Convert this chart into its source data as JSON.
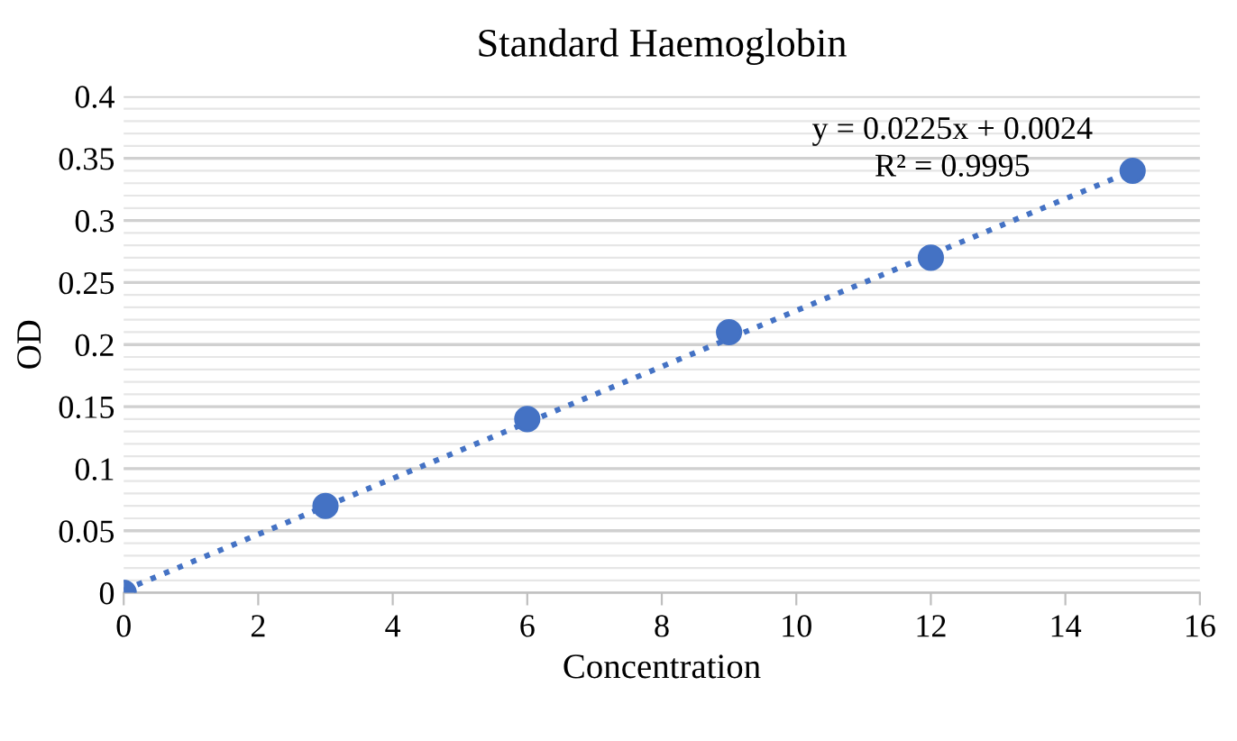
{
  "chart_data": {
    "type": "scatter",
    "title": "Standard Haemoglobin",
    "xlabel": "Concentration",
    "ylabel": "OD",
    "x": [
      0,
      3,
      6,
      9,
      12,
      15
    ],
    "series": [
      {
        "color": "#4472c4",
        "values": [
          0,
          0.07,
          0.14,
          0.21,
          0.27,
          0.34
        ],
        "marker": "circle"
      },
      {
        "type": "line",
        "color": "#4472c4",
        "x": [
          0,
          15
        ],
        "values": [
          0.002,
          0.34
        ],
        "line_style": "dotted",
        "marker": "none"
      }
    ],
    "annotations": [
      "y = 0.0225x + 0.0024",
      "R² = 0.9995"
    ],
    "xlim": [
      0,
      16
    ],
    "xticks": [
      0,
      2,
      4,
      6,
      8,
      10,
      12,
      14,
      16
    ],
    "ylim": [
      0,
      0.4
    ],
    "yticks": [
      0,
      0.05,
      0.1,
      0.15,
      0.2,
      0.25,
      0.3,
      0.35,
      0.4
    ],
    "grid": "y",
    "legend": false
  }
}
